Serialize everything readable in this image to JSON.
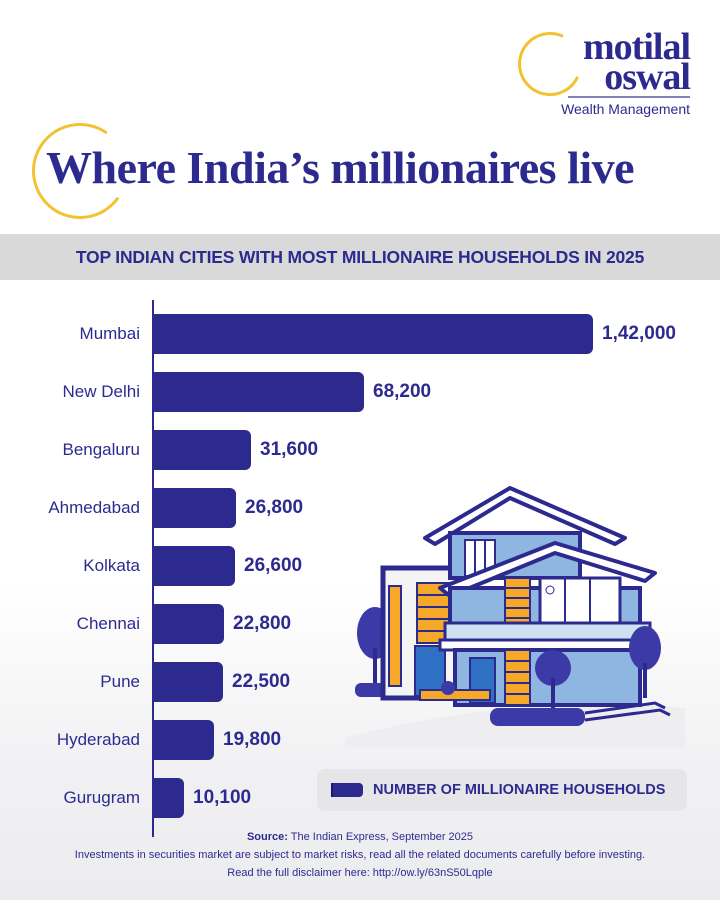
{
  "brand": {
    "line1": "motilal",
    "line2": "oswal",
    "subtitle": "Wealth Management",
    "colors": {
      "primary": "#2d2a8f",
      "accent": "#f2c230"
    }
  },
  "header": {
    "title": "Where India’s millionaires live",
    "subtitle": "TOP INDIAN CITIES WITH MOST MILLIONAIRE HOUSEHOLDS IN 2025"
  },
  "legend": {
    "label": "NUMBER OF MILLIONAIRE HOUSEHOLDS"
  },
  "footer": {
    "source_label": "Source:",
    "source_text": " The Indian Express, September 2025",
    "disclaimer": "Investments in securities market are subject to market risks, read all the related documents carefully before investing.",
    "disclaimer_link": "Read the full disclaimer here: http://ow.ly/63nS50Lqple"
  },
  "illustration": {
    "icon": "modern-house-illustration"
  },
  "chart_data": {
    "type": "bar",
    "orientation": "horizontal",
    "title": "TOP INDIAN CITIES WITH MOST MILLIONAIRE HOUSEHOLDS IN 2025",
    "xlabel": "",
    "ylabel": "",
    "categories": [
      "Mumbai",
      "New Delhi",
      "Bengaluru",
      "Ahmedabad",
      "Kolkata",
      "Chennai",
      "Pune",
      "Hyderabad",
      "Gurugram"
    ],
    "series": [
      {
        "name": "NUMBER OF MILLIONAIRE HOUSEHOLDS",
        "values": [
          142000,
          68200,
          31600,
          26800,
          26600,
          22800,
          22500,
          19800,
          10100
        ],
        "labels": [
          "1,42,000",
          "68,200",
          "31,600",
          "26,800",
          "26,600",
          "22,800",
          "22,500",
          "19,800",
          "10,100"
        ],
        "color": "#2d2a8f"
      }
    ],
    "grid": false,
    "legend_position": "bottom-right"
  }
}
